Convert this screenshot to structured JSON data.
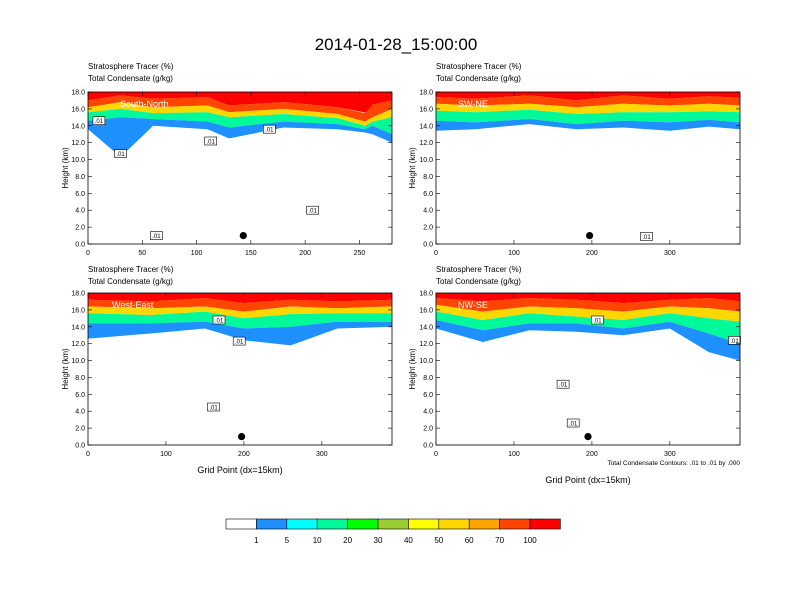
{
  "main_title": "2014-01-28_15:00:00",
  "colorbar": {
    "colors": [
      "#ffffff",
      "#1e90ff",
      "#00ffff",
      "#00fa9a",
      "#00ff00",
      "#9acd32",
      "#ffff00",
      "#ffd700",
      "#ffa500",
      "#ff4500",
      "#ff0000"
    ],
    "labels": [
      "1",
      "5",
      "10",
      "20",
      "30",
      "40",
      "50",
      "60",
      "70",
      "100"
    ]
  },
  "contour_note": "Total Condensate Contours: .01 to .01 by .000",
  "chart_data": [
    {
      "type": "heatmap",
      "id": "south-north",
      "cross_section": "South-North",
      "subtitle1": "Stratosphere Tracer   (%)",
      "subtitle2": "Total Condensate   (g/kg)",
      "ylabel": "Height (km)",
      "xlabel": "",
      "ylim": [
        0,
        18
      ],
      "xlim": [
        0,
        280
      ],
      "yticks": [
        "0.0",
        "2.0",
        "4.0",
        "6.0",
        "8.0",
        "10.0",
        "12.0",
        "14.0",
        "16.0",
        "18.0"
      ],
      "xtick_values": [
        0,
        50,
        100,
        150,
        200,
        250
      ],
      "xticks": [
        "0",
        "50",
        "100",
        "150",
        "200",
        "250"
      ],
      "marker": {
        "x": 143,
        "y": 1.0
      },
      "contour_labels": [
        {
          "text": ".01",
          "x": 10,
          "y": 14.6
        },
        {
          "text": ".01",
          "x": 30,
          "y": 10.7
        },
        {
          "text": ".01",
          "x": 113,
          "y": 12.2
        },
        {
          "text": ".01",
          "x": 167,
          "y": 13.6
        },
        {
          "text": ".01",
          "x": 207,
          "y": 4.0
        },
        {
          "text": ".01",
          "x": 63,
          "y": 1.0
        }
      ],
      "tracer_layers": [
        {
          "level": "100",
          "x": [
            0,
            30,
            60,
            110,
            130,
            180,
            230,
            258,
            262,
            280
          ],
          "top": [
            18,
            18,
            18,
            18,
            18,
            18,
            18,
            18,
            18,
            18
          ],
          "bottom": [
            17.0,
            17.6,
            17.2,
            17.4,
            16.4,
            16.8,
            16.2,
            15.5,
            16.5,
            17.0
          ]
        },
        {
          "level": "70",
          "x": [
            0,
            30,
            60,
            110,
            130,
            180,
            230,
            255,
            262,
            280
          ],
          "top": [
            17.0,
            17.6,
            17.2,
            17.4,
            16.4,
            16.8,
            16.2,
            15.5,
            16.5,
            17.0
          ],
          "bottom": [
            16.2,
            16.8,
            16.2,
            16.4,
            15.6,
            16.0,
            15.4,
            14.5,
            15.0,
            16.0
          ]
        },
        {
          "level": "50",
          "x": [
            0,
            30,
            60,
            110,
            130,
            180,
            230,
            255,
            262,
            280
          ],
          "top": [
            16.2,
            16.8,
            16.2,
            16.4,
            15.6,
            16.0,
            15.4,
            14.5,
            15.0,
            16.0
          ],
          "bottom": [
            15.6,
            16.0,
            15.5,
            15.6,
            15.0,
            15.4,
            14.9,
            14.0,
            14.5,
            15.0
          ]
        },
        {
          "level": "20",
          "x": [
            0,
            30,
            60,
            110,
            130,
            180,
            230,
            255,
            262,
            280
          ],
          "top": [
            15.6,
            16.0,
            15.5,
            15.6,
            15.0,
            15.4,
            14.9,
            14.0,
            14.5,
            15.0
          ],
          "bottom": [
            14.6,
            15.0,
            14.8,
            14.5,
            13.8,
            14.5,
            14.2,
            13.6,
            14.0,
            13.0
          ]
        },
        {
          "level": "5",
          "x": [
            0,
            30,
            60,
            110,
            130,
            180,
            230,
            255,
            262,
            280
          ],
          "top": [
            14.6,
            15.0,
            14.8,
            14.5,
            13.8,
            14.5,
            14.2,
            13.6,
            14.0,
            13.0
          ],
          "bottom": [
            13.6,
            10.3,
            14.0,
            13.6,
            12.5,
            13.8,
            13.6,
            13.2,
            13.0,
            12.0
          ]
        }
      ]
    },
    {
      "type": "heatmap",
      "id": "sw-ne",
      "cross_section": "SW-NE",
      "subtitle1": "Stratosphere Tracer   (%)",
      "subtitle2": "Total Condensate   (g/kg)",
      "ylabel": "Height (km)",
      "xlabel": "",
      "ylim": [
        0,
        18
      ],
      "xlim": [
        0,
        390
      ],
      "yticks": [
        "0.0",
        "2.0",
        "4.0",
        "6.0",
        "8.0",
        "10.0",
        "12.0",
        "14.0",
        "16.0",
        "18.0"
      ],
      "xtick_values": [
        0,
        100,
        200,
        300
      ],
      "xticks": [
        "0",
        "100",
        "200",
        "300"
      ],
      "marker": {
        "x": 197,
        "y": 1.0
      },
      "contour_labels": [
        {
          "text": ".01",
          "x": 270,
          "y": 0.9
        }
      ],
      "tracer_layers": [
        {
          "level": "100",
          "x": [
            0,
            50,
            120,
            180,
            240,
            300,
            350,
            390
          ],
          "top": [
            18,
            18,
            18,
            18,
            18,
            18,
            18,
            18
          ],
          "bottom": [
            17.4,
            17.2,
            17.6,
            17.0,
            17.6,
            17.2,
            17.5,
            17.3
          ]
        },
        {
          "level": "70",
          "x": [
            0,
            50,
            120,
            180,
            240,
            300,
            350,
            390
          ],
          "top": [
            17.4,
            17.2,
            17.6,
            17.0,
            17.6,
            17.2,
            17.5,
            17.3
          ],
          "bottom": [
            16.6,
            16.4,
            16.6,
            16.2,
            16.6,
            16.4,
            16.6,
            16.4
          ]
        },
        {
          "level": "50",
          "x": [
            0,
            50,
            120,
            180,
            240,
            300,
            350,
            390
          ],
          "top": [
            16.6,
            16.4,
            16.6,
            16.2,
            16.6,
            16.4,
            16.6,
            16.4
          ],
          "bottom": [
            15.8,
            15.6,
            15.9,
            15.4,
            15.6,
            15.6,
            15.7,
            15.6
          ]
        },
        {
          "level": "20",
          "x": [
            0,
            50,
            120,
            180,
            240,
            300,
            350,
            390
          ],
          "top": [
            15.8,
            15.6,
            15.9,
            15.4,
            15.6,
            15.6,
            15.7,
            15.6
          ],
          "bottom": [
            14.6,
            14.4,
            14.8,
            14.2,
            14.6,
            14.4,
            14.7,
            14.4
          ]
        },
        {
          "level": "5",
          "x": [
            0,
            50,
            120,
            180,
            240,
            300,
            350,
            390
          ],
          "top": [
            14.6,
            14.4,
            14.8,
            14.2,
            14.6,
            14.4,
            14.7,
            14.4
          ],
          "bottom": [
            13.4,
            13.6,
            14.2,
            13.6,
            13.8,
            13.4,
            13.9,
            13.6
          ]
        }
      ]
    },
    {
      "type": "heatmap",
      "id": "west-east",
      "cross_section": "West-East",
      "subtitle1": "Stratosphere Tracer   (%)",
      "subtitle2": "Total Condensate   (g/kg)",
      "ylabel": "Height (km)",
      "xlabel": "Grid Point (dx=15km)",
      "ylim": [
        0,
        18
      ],
      "xlim": [
        0,
        390
      ],
      "yticks": [
        "0.0",
        "2.0",
        "4.0",
        "6.0",
        "8.0",
        "10.0",
        "12.0",
        "14.0",
        "16.0",
        "18.0"
      ],
      "xtick_values": [
        0,
        100,
        200,
        300
      ],
      "xticks": [
        "0",
        "100",
        "200",
        "300"
      ],
      "marker": {
        "x": 197,
        "y": 1.0
      },
      "contour_labels": [
        {
          "text": ".01",
          "x": 168,
          "y": 14.8
        },
        {
          "text": ".01",
          "x": 194,
          "y": 12.3
        },
        {
          "text": ".01",
          "x": 161,
          "y": 4.5
        }
      ],
      "tracer_layers": [
        {
          "level": "100",
          "x": [
            0,
            80,
            150,
            200,
            260,
            320,
            390
          ],
          "top": [
            18,
            18,
            18,
            18,
            18,
            18,
            18
          ],
          "bottom": [
            17.2,
            17.0,
            17.4,
            16.8,
            17.2,
            17.0,
            17.2
          ]
        },
        {
          "level": "70",
          "x": [
            0,
            80,
            150,
            200,
            260,
            320,
            390
          ],
          "top": [
            17.2,
            17.0,
            17.4,
            16.8,
            17.2,
            17.0,
            17.2
          ],
          "bottom": [
            16.4,
            16.2,
            16.4,
            15.8,
            16.4,
            16.2,
            16.4
          ]
        },
        {
          "level": "50",
          "x": [
            0,
            80,
            150,
            200,
            260,
            320,
            390
          ],
          "top": [
            16.4,
            16.2,
            16.4,
            15.8,
            16.4,
            16.2,
            16.4
          ],
          "bottom": [
            15.6,
            15.4,
            15.8,
            15.0,
            15.5,
            15.6,
            15.6
          ]
        },
        {
          "level": "20",
          "x": [
            0,
            80,
            150,
            200,
            260,
            320,
            390
          ],
          "top": [
            15.6,
            15.4,
            15.8,
            15.0,
            15.5,
            15.6,
            15.6
          ],
          "bottom": [
            14.4,
            14.4,
            14.6,
            13.8,
            14.0,
            14.6,
            14.6
          ]
        },
        {
          "level": "5",
          "x": [
            0,
            80,
            150,
            200,
            260,
            320,
            390
          ],
          "top": [
            14.4,
            14.4,
            14.6,
            13.8,
            14.0,
            14.6,
            14.6
          ],
          "bottom": [
            12.6,
            13.2,
            13.8,
            12.4,
            11.8,
            13.8,
            14.0
          ]
        }
      ]
    },
    {
      "type": "heatmap",
      "id": "nw-se",
      "cross_section": "NW-SE",
      "subtitle1": "Stratosphere Tracer   (%)",
      "subtitle2": "Total Condensate   (g/kg)",
      "ylabel": "Height (km)",
      "xlabel": "Grid Point (dx=15km)",
      "ylim": [
        0,
        18
      ],
      "xlim": [
        0,
        390
      ],
      "yticks": [
        "0.0",
        "2.0",
        "4.0",
        "6.0",
        "8.0",
        "10.0",
        "12.0",
        "14.0",
        "16.0",
        "18.0"
      ],
      "xtick_values": [
        0,
        100,
        200,
        300
      ],
      "xticks": [
        "0",
        "100",
        "200",
        "300"
      ],
      "marker": {
        "x": 195,
        "y": 1.0
      },
      "contour_labels": [
        {
          "text": ".01",
          "x": 207,
          "y": 14.8
        },
        {
          "text": ".01",
          "x": 163,
          "y": 7.2
        },
        {
          "text": ".01",
          "x": 176,
          "y": 2.6
        },
        {
          "text": ".01",
          "x": 383,
          "y": 12.4
        }
      ],
      "tracer_layers": [
        {
          "level": "100",
          "x": [
            0,
            60,
            120,
            180,
            240,
            300,
            350,
            390
          ],
          "top": [
            18,
            18,
            18,
            18,
            18,
            18,
            18,
            18
          ],
          "bottom": [
            17.4,
            17.0,
            17.4,
            17.2,
            16.8,
            17.2,
            17.4,
            17.0
          ]
        },
        {
          "level": "70",
          "x": [
            0,
            60,
            120,
            180,
            240,
            300,
            350,
            390
          ],
          "top": [
            17.4,
            17.0,
            17.4,
            17.2,
            16.8,
            17.2,
            17.4,
            17.0
          ],
          "bottom": [
            16.6,
            15.8,
            16.4,
            16.2,
            15.8,
            16.4,
            16.2,
            15.8
          ]
        },
        {
          "level": "50",
          "x": [
            0,
            60,
            120,
            180,
            240,
            300,
            350,
            390
          ],
          "top": [
            16.6,
            15.8,
            16.4,
            16.2,
            15.8,
            16.4,
            16.2,
            15.8
          ],
          "bottom": [
            15.8,
            14.8,
            15.6,
            15.2,
            14.8,
            15.6,
            15.0,
            14.6
          ]
        },
        {
          "level": "20",
          "x": [
            0,
            60,
            120,
            180,
            240,
            300,
            350,
            390
          ],
          "top": [
            15.8,
            14.8,
            15.6,
            15.2,
            14.8,
            15.6,
            15.0,
            14.6
          ],
          "bottom": [
            14.8,
            13.6,
            14.4,
            14.4,
            13.8,
            14.6,
            13.2,
            12.0
          ]
        },
        {
          "level": "5",
          "x": [
            0,
            60,
            120,
            180,
            240,
            300,
            350,
            390
          ],
          "top": [
            14.8,
            13.6,
            14.4,
            14.4,
            13.8,
            14.6,
            13.2,
            12.0
          ],
          "bottom": [
            13.8,
            12.2,
            13.6,
            13.4,
            13.0,
            13.8,
            11.0,
            10.0
          ]
        }
      ]
    }
  ]
}
